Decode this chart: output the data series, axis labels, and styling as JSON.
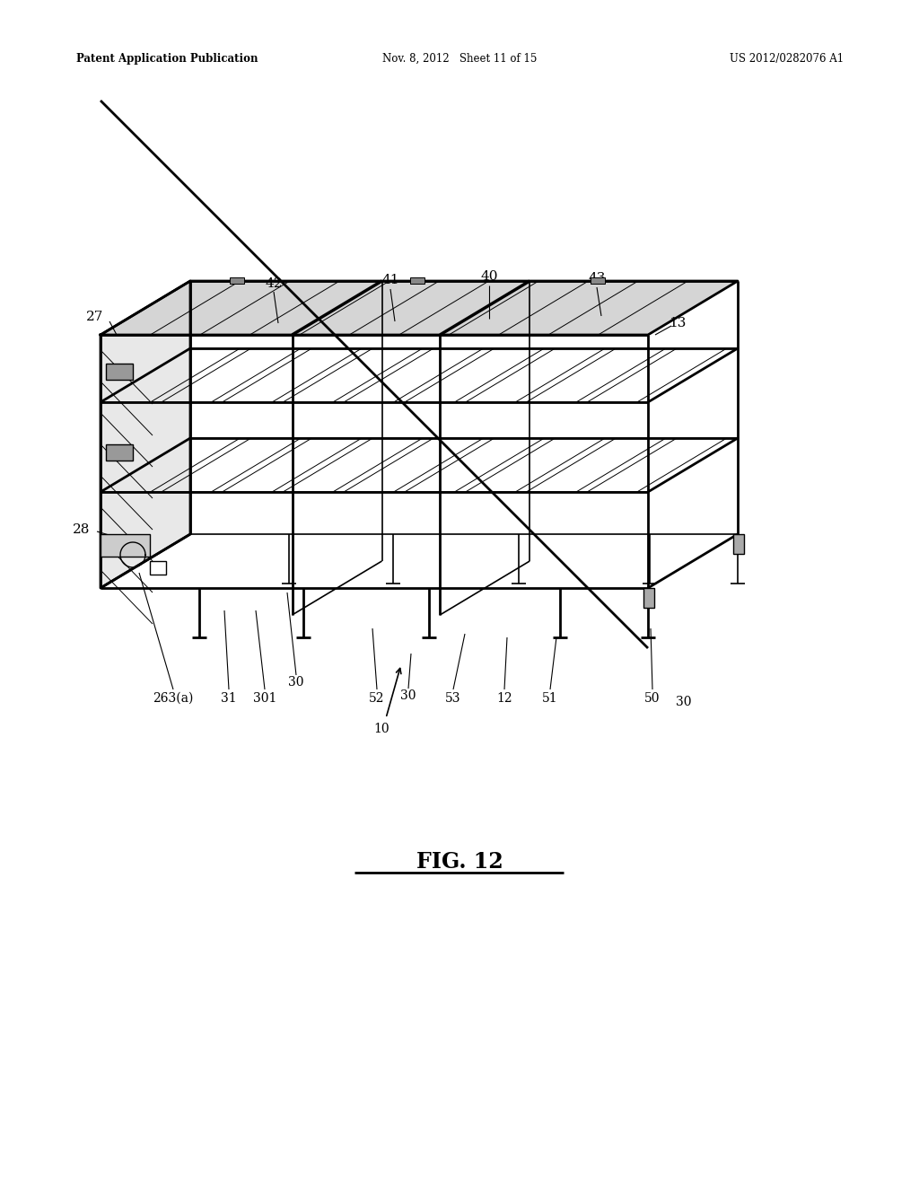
{
  "bg_color": "#ffffff",
  "header_left": "Patent Application Publication",
  "header_mid": "Nov. 8, 2012   Sheet 11 of 15",
  "header_right": "US 2012/0282076 A1",
  "fig_label": "FIG. 12",
  "line_color": "#000000",
  "lw_thin": 0.7,
  "lw_med": 1.2,
  "lw_thick": 2.0,
  "font_size_label": 11,
  "font_size_header": 8.5,
  "font_size_fig": 17
}
